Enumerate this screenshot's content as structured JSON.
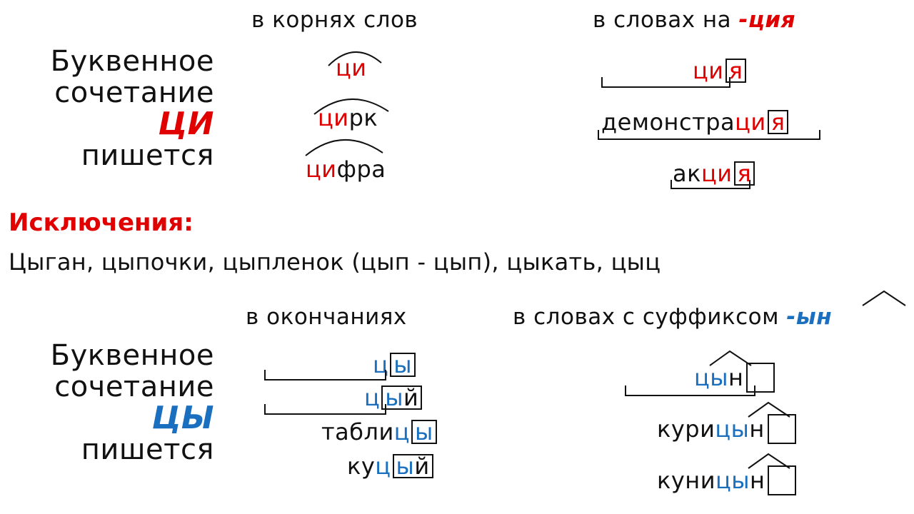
{
  "top": {
    "side": [
      "Буквенное",
      "сочетание",
      "ЦИ",
      "пишется"
    ],
    "col1_title": "в корнях слов",
    "col1_words": [
      {
        "pre": "",
        "hl": "ци",
        "post": ""
      },
      {
        "pre": "",
        "hl": "ци",
        "post": "рк"
      },
      {
        "pre": "",
        "hl": "ци",
        "post": "фра"
      }
    ],
    "col2_title_prefix": "в словах на ",
    "col2_title_suffix": "-ция",
    "col2_words": [
      {
        "pre": "",
        "hl": "ци",
        "box": "я"
      },
      {
        "pre": "демонстра",
        "hl": "ци",
        "box": "я"
      },
      {
        "pre": "ак",
        "hl": "ци",
        "box": "я"
      }
    ]
  },
  "exceptions": {
    "title": "Исключения:",
    "words": "Цыган, цыпочки, цыпленок (цып - цып), цыкать, цыц"
  },
  "bottom": {
    "side": [
      "Буквенное",
      "сочетание",
      "ЦЫ",
      "пишется"
    ],
    "col1_title": "в окончаниях",
    "col1_words": [
      {
        "pre": "",
        "hl": "ц",
        "box": "ы",
        "after": ""
      },
      {
        "pre": "",
        "hl": "ц",
        "box": "ы",
        "after": "й"
      },
      {
        "pre": "табли",
        "hl": "ц",
        "box": "ы",
        "after": ""
      },
      {
        "pre": "ку",
        "hl": "ц",
        "box": "ы",
        "after": "й"
      }
    ],
    "col2_title_prefix": "в словах с суффиксом ",
    "col2_title_suffix": "-ын",
    "col2_words": [
      {
        "pre": "",
        "hl": "цы",
        "post": "н"
      },
      {
        "pre": "кури",
        "hl": "цы",
        "post": "н"
      },
      {
        "pre": "куни",
        "hl": "цы",
        "post": "н"
      }
    ]
  },
  "colors": {
    "red": "#e00000",
    "blue": "#1a6fbf"
  }
}
